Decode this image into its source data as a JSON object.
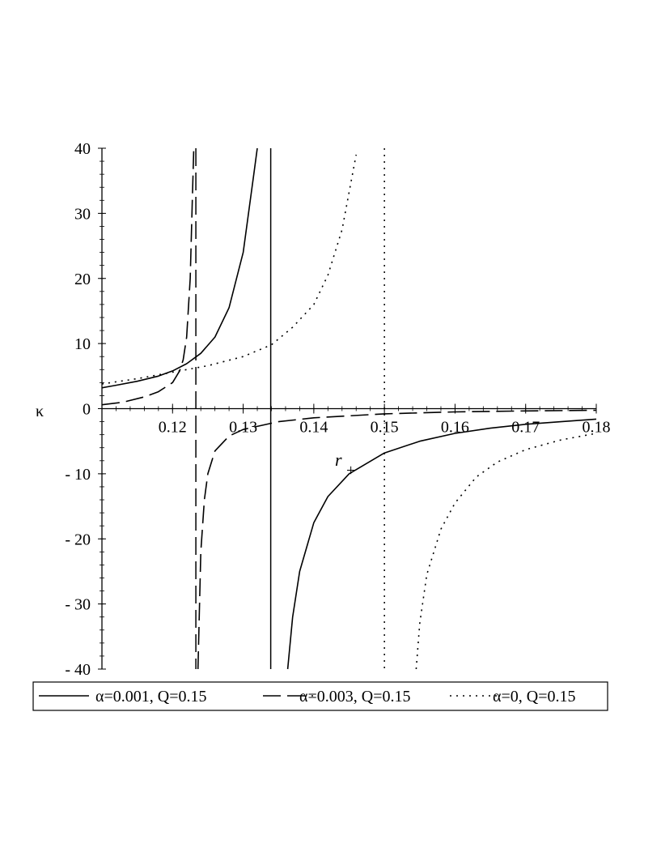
{
  "chart_data": {
    "type": "line",
    "xlabel": "r",
    "xlabel_sub": "+",
    "ylabel": "κ",
    "xlim": [
      0.11,
      0.18
    ],
    "ylim": [
      -40,
      40
    ],
    "grid": false,
    "legend_position": "bottom",
    "x_ticks": [
      "0.12",
      "0.13",
      "0.14",
      "0.15",
      "0.16",
      "0.17",
      "0.18"
    ],
    "y_ticks": [
      "40",
      "30",
      "20",
      "10",
      "0",
      "- 10",
      "- 20",
      "- 30",
      "- 40"
    ],
    "series": [
      {
        "name": "α=0.001, Q=0.15",
        "style": "solid",
        "asymptote_x": 0.1339,
        "left_branch": [
          [
            0.11,
            3.2
          ],
          [
            0.112,
            3.6
          ],
          [
            0.115,
            4.2
          ],
          [
            0.118,
            5.0
          ],
          [
            0.12,
            5.8
          ],
          [
            0.122,
            6.9
          ],
          [
            0.124,
            8.5
          ],
          [
            0.126,
            11.0
          ],
          [
            0.128,
            15.5
          ],
          [
            0.13,
            24.0
          ],
          [
            0.1315,
            36.0
          ],
          [
            0.132,
            40.0
          ]
        ],
        "right_branch": [
          [
            0.1363,
            -40.0
          ],
          [
            0.137,
            -32.0
          ],
          [
            0.138,
            -25.0
          ],
          [
            0.14,
            -17.5
          ],
          [
            0.142,
            -13.5
          ],
          [
            0.145,
            -10.0
          ],
          [
            0.15,
            -6.8
          ],
          [
            0.155,
            -5.0
          ],
          [
            0.16,
            -3.8
          ],
          [
            0.165,
            -3.0
          ],
          [
            0.17,
            -2.4
          ],
          [
            0.175,
            -2.0
          ],
          [
            0.18,
            -1.6
          ]
        ]
      },
      {
        "name": "α=0.003, Q=0.15",
        "style": "dashed",
        "asymptote_x": 0.1233,
        "left_branch": [
          [
            0.11,
            0.6
          ],
          [
            0.113,
            1.0
          ],
          [
            0.116,
            1.8
          ],
          [
            0.118,
            2.6
          ],
          [
            0.12,
            4.0
          ],
          [
            0.121,
            5.8
          ],
          [
            0.1215,
            7.5
          ],
          [
            0.122,
            11.0
          ],
          [
            0.1225,
            20.0
          ],
          [
            0.1228,
            32.0
          ],
          [
            0.123,
            40.0
          ]
        ],
        "right_branch": [
          [
            0.1236,
            -40.0
          ],
          [
            0.124,
            -22.0
          ],
          [
            0.1245,
            -14.0
          ],
          [
            0.125,
            -10.0
          ],
          [
            0.126,
            -6.5
          ],
          [
            0.128,
            -4.2
          ],
          [
            0.13,
            -3.2
          ],
          [
            0.135,
            -2.0
          ],
          [
            0.14,
            -1.4
          ],
          [
            0.15,
            -0.8
          ],
          [
            0.16,
            -0.5
          ],
          [
            0.17,
            -0.35
          ],
          [
            0.18,
            -0.25
          ]
        ]
      },
      {
        "name": "α=0, Q=0.15",
        "style": "dotted",
        "asymptote_x": 0.15,
        "left_branch": [
          [
            0.11,
            3.8
          ],
          [
            0.115,
            4.6
          ],
          [
            0.12,
            5.6
          ],
          [
            0.125,
            6.6
          ],
          [
            0.13,
            8.0
          ],
          [
            0.134,
            9.8
          ],
          [
            0.137,
            12.5
          ],
          [
            0.14,
            16.0
          ],
          [
            0.142,
            20.5
          ],
          [
            0.144,
            27.5
          ],
          [
            0.146,
            39.0
          ]
        ],
        "right_branch": [
          [
            0.1545,
            -40.0
          ],
          [
            0.155,
            -33.0
          ],
          [
            0.156,
            -25.5
          ],
          [
            0.158,
            -18.5
          ],
          [
            0.16,
            -14.5
          ],
          [
            0.163,
            -10.5
          ],
          [
            0.166,
            -8.2
          ],
          [
            0.17,
            -6.3
          ],
          [
            0.175,
            -4.8
          ],
          [
            0.18,
            -3.8
          ]
        ]
      }
    ]
  }
}
